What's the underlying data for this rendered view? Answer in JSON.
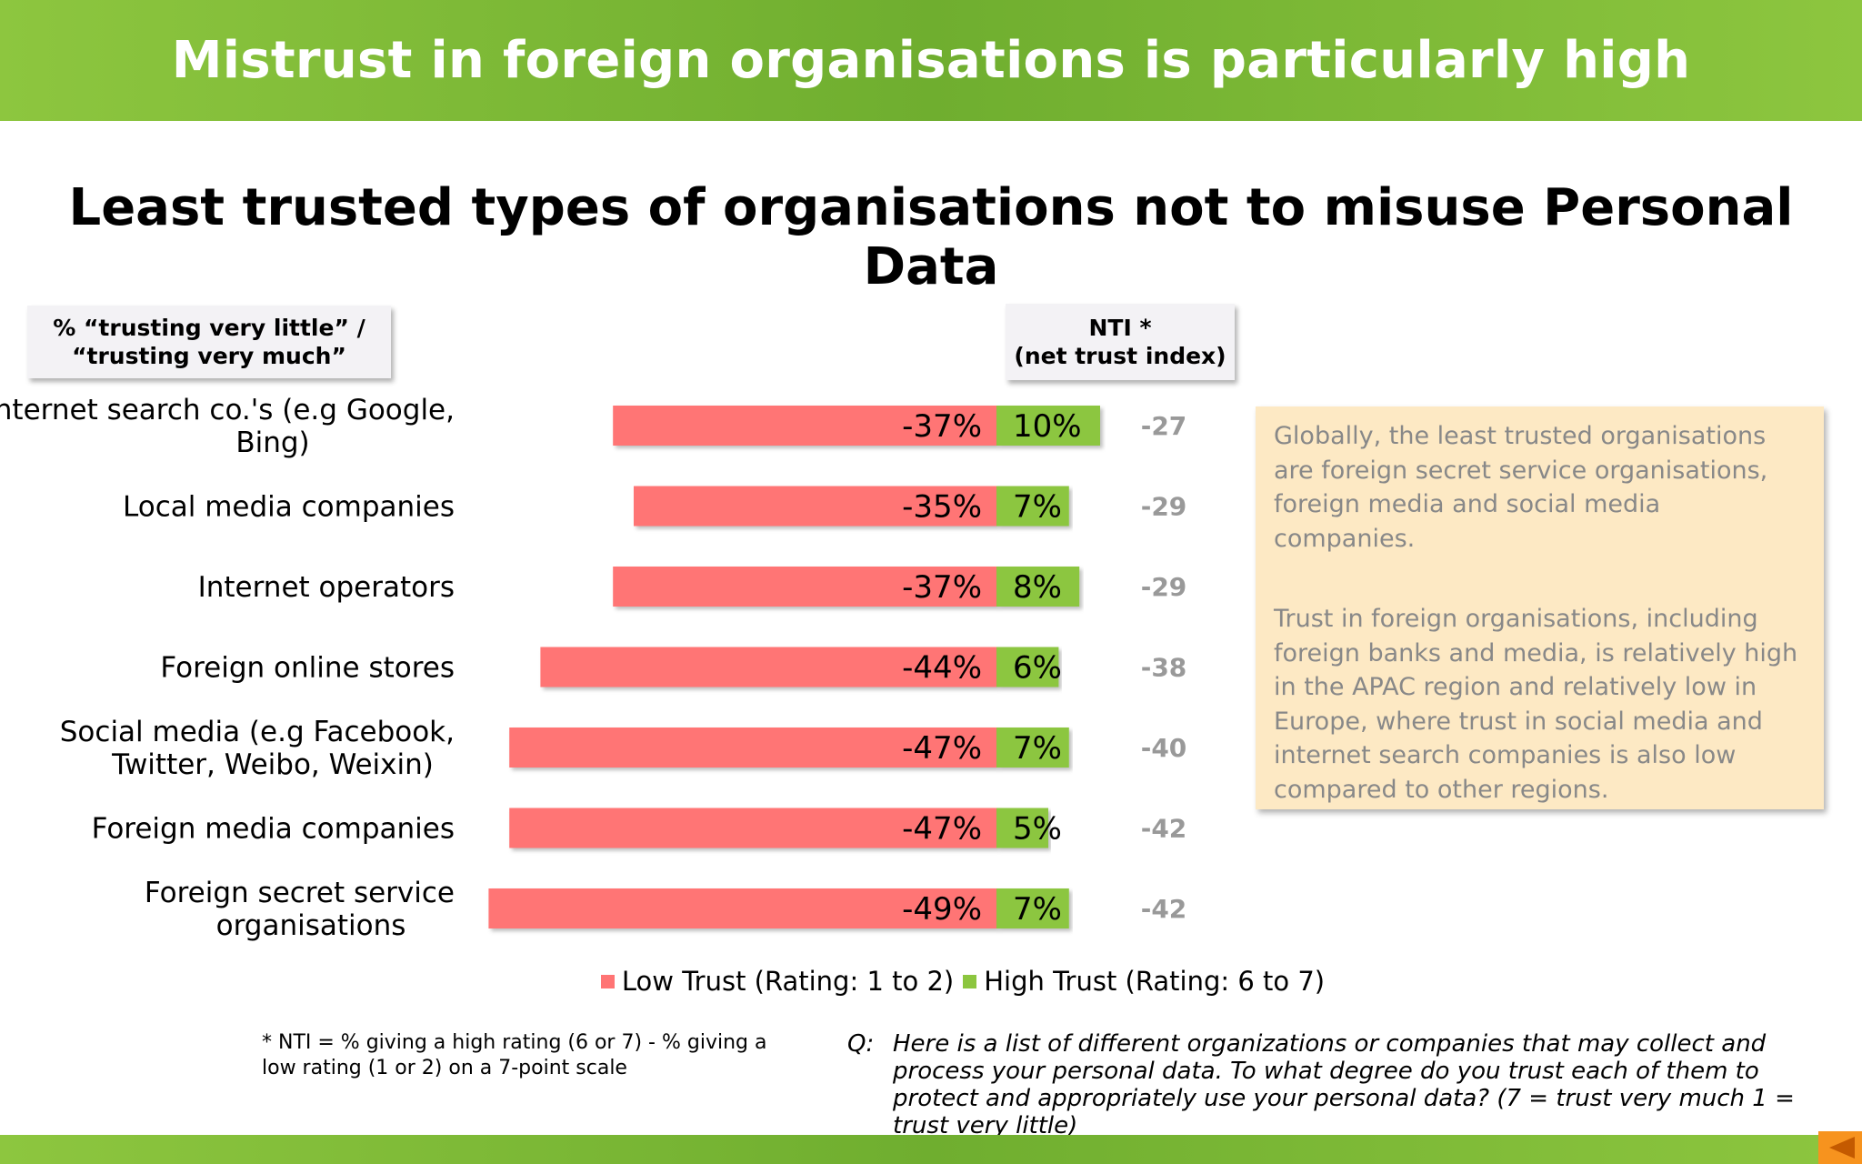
{
  "banner": {
    "title": "Mistrust in foreign organisations is particularly high"
  },
  "header_left": {
    "line1": "% “trusting very  little” /",
    "line2": "“trusting very much”"
  },
  "header_right": {
    "line1": "NTI *",
    "line2": "(net trust index)"
  },
  "callout": {
    "para1": "Globally, the least trusted organisations are foreign secret service organisations, foreign media and social media companies.",
    "para2": "Trust in foreign organisations, including foreign banks and media, is relatively high in the APAC region and relatively low in Europe, where trust in social media and internet search companies is also low compared to other regions."
  },
  "footnote": "* NTI = % giving a high rating (6 or 7) - % giving a low rating (1 or 2) on a 7-point scale",
  "question": {
    "label": "Q:",
    "text": "Here is a list of different organizations or companies that may collect and process your personal data.  To what degree do you trust each of them to protect and appropriately use your personal data? (7 = trust very much 1 = trust very little)"
  },
  "colors": {
    "low": "#ff7474",
    "high": "#8cc63f",
    "banner": "#7ab934",
    "nti": "#999999",
    "callout_bg": "#fde9c4"
  },
  "chart_data": {
    "type": "bar",
    "orientation": "horizontal-diverging",
    "title": "Least trusted types of organisations not to misuse Personal Data",
    "categories": [
      [
        "Internet search co.'s (e.g Google,",
        "Bing)"
      ],
      [
        "Local media companies"
      ],
      [
        "Internet operators"
      ],
      [
        "Foreign online stores"
      ],
      [
        "Social media (e.g Facebook,",
        "Twitter, Weibo, Weixin)"
      ],
      [
        "Foreign media companies"
      ],
      [
        "Foreign secret service",
        "organisations"
      ]
    ],
    "series": [
      {
        "name": "Low Trust (Rating: 1 to 2)",
        "values": [
          -37,
          -35,
          -37,
          -44,
          -47,
          -47,
          -49
        ],
        "labels": [
          "-37%",
          "-35%",
          "-37%",
          "-44%",
          "-47%",
          "-47%",
          "-49%"
        ]
      },
      {
        "name": "High Trust (Rating: 6 to 7)",
        "values": [
          10,
          7,
          8,
          6,
          7,
          5,
          7
        ],
        "labels": [
          "10%",
          "7%",
          "8%",
          "6%",
          "7%",
          "5%",
          "7%"
        ]
      }
    ],
    "nti": {
      "values": [
        -27,
        -29,
        -29,
        -38,
        -40,
        -42,
        -42
      ],
      "labels": [
        "-27",
        "-29",
        "-29",
        "-38",
        "-40",
        "-42",
        "-42"
      ]
    },
    "legend_position": "bottom",
    "grid": false
  }
}
